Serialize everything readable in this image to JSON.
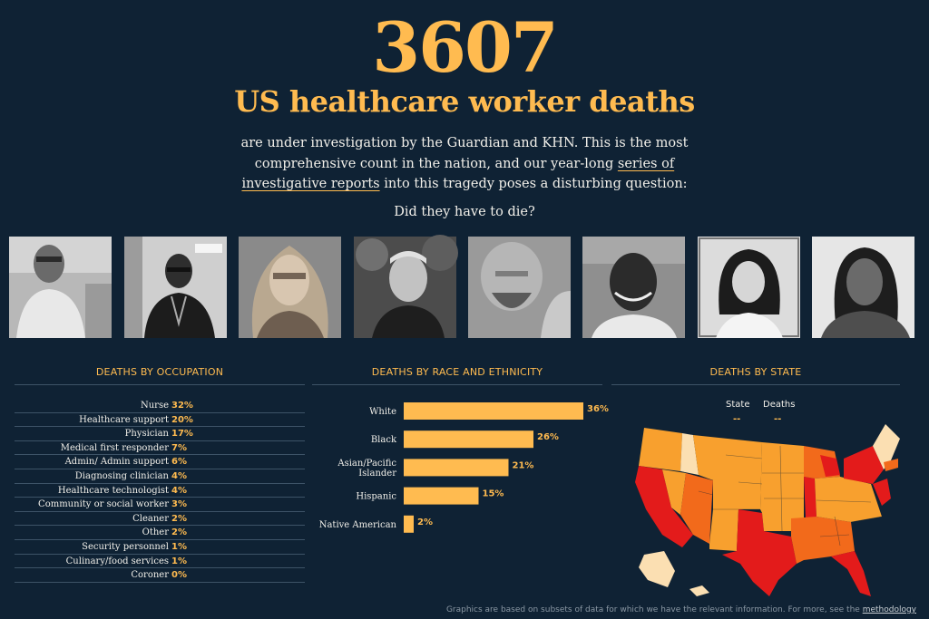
{
  "header": {
    "count": "3607",
    "title": "US healthcare worker deaths",
    "intro_before": "are under investigation by the Guardian and KHN. This is the most comprehensive count in the nation, and our year-long ",
    "intro_link": "series of investigative reports",
    "intro_after": " into this tragedy poses a disturbing question:",
    "question": "Did they have to die?"
  },
  "photos": [
    {
      "name": "worker-photo-1"
    },
    {
      "name": "worker-photo-2"
    },
    {
      "name": "worker-photo-3"
    },
    {
      "name": "worker-photo-4"
    },
    {
      "name": "worker-photo-5"
    },
    {
      "name": "worker-photo-6"
    },
    {
      "name": "worker-photo-7"
    },
    {
      "name": "worker-photo-8"
    }
  ],
  "occupation": {
    "title": "DEATHS BY OCCUPATION",
    "rows": [
      {
        "label": "Nurse",
        "value": "32%"
      },
      {
        "label": "Healthcare support",
        "value": "20%"
      },
      {
        "label": "Physician",
        "value": "17%"
      },
      {
        "label": "Medical first responder",
        "value": "7%"
      },
      {
        "label": "Admin/ Admin support",
        "value": "6%"
      },
      {
        "label": "Diagnosing clinician",
        "value": "4%"
      },
      {
        "label": "Healthcare technologist",
        "value": "4%"
      },
      {
        "label": "Community or social worker",
        "value": "3%"
      },
      {
        "label": "Cleaner",
        "value": "2%"
      },
      {
        "label": "Other",
        "value": "2%"
      },
      {
        "label": "Security personnel",
        "value": "1%"
      },
      {
        "label": "Culinary/food services",
        "value": "1%"
      },
      {
        "label": "Coroner",
        "value": "0%"
      }
    ]
  },
  "race": {
    "title": "DEATHS BY RACE AND ETHNICITY"
  },
  "chart_data": {
    "type": "bar",
    "orientation": "horizontal",
    "categories": [
      "White",
      "Black",
      "Asian/Pacific Islander",
      "Hispanic",
      "Native American"
    ],
    "category_lines": [
      [
        "White"
      ],
      [
        "Black"
      ],
      [
        "Asian/Pacific",
        "Islander"
      ],
      [
        "Hispanic"
      ],
      [
        "Native American"
      ]
    ],
    "values": [
      36,
      26,
      21,
      15,
      2
    ],
    "value_labels": [
      "36%",
      "26%",
      "21%",
      "15%",
      "2%"
    ],
    "xlim": [
      0,
      40
    ],
    "bar_color": "#ffbb50",
    "grid": false
  },
  "state": {
    "title": "DEATHS BY STATE",
    "col_state": "State",
    "col_deaths": "Deaths",
    "state_value": "--",
    "deaths_value": "--"
  },
  "colors": {
    "accent": "#ffbb50",
    "background": "#0f2234",
    "map_high": "#e31b1b",
    "map_mid": "#f26a1b",
    "map_midlow": "#f8a02e",
    "map_low": "#fbdfb2"
  },
  "footer": {
    "note": "Graphics are based on subsets of data for which we have the relevant information. For more, see the ",
    "link": "methodology"
  }
}
